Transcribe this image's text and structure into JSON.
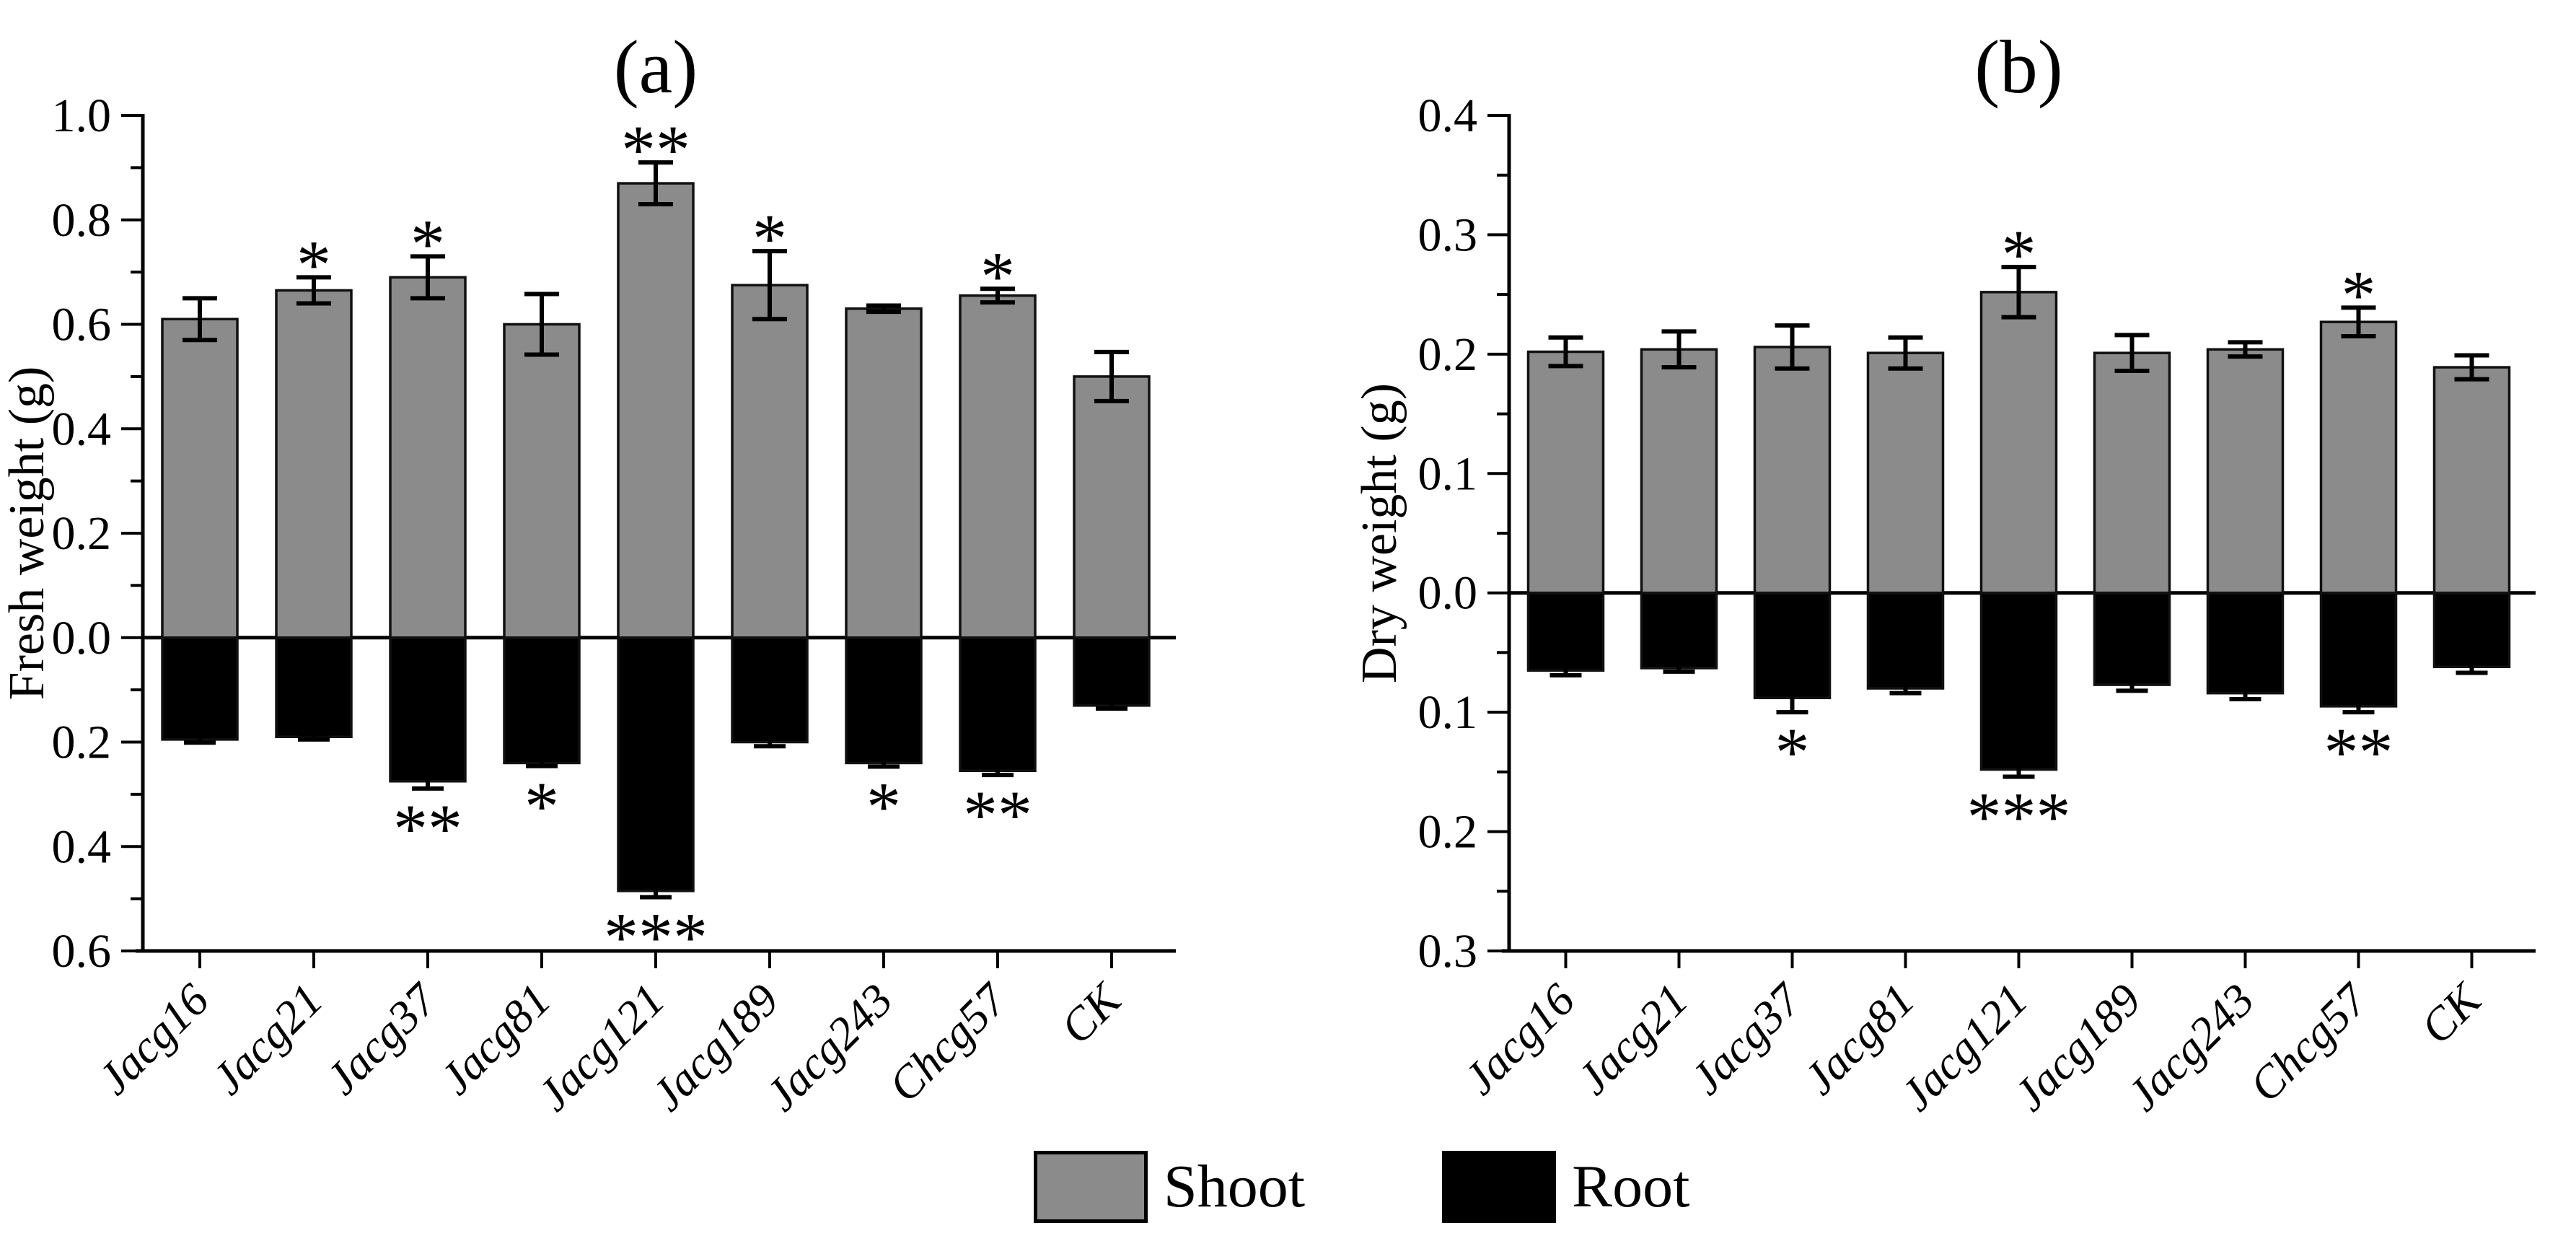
{
  "figure": {
    "background": "#ffffff",
    "bar_fill_shoot": "#8b8b8b",
    "bar_fill_root": "#000000",
    "bar_border": "#111111",
    "legend": {
      "position": "bottom-center",
      "items": [
        {
          "label": "Shoot",
          "swatch": "gray-filled-square",
          "color": "#8b8b8b"
        },
        {
          "label": "Root",
          "swatch": "black-filled-square",
          "color": "#000000"
        }
      ]
    }
  },
  "chart_data": [
    {
      "type": "bar",
      "panel_label": "(a)",
      "title": "(a)",
      "xlabel": "",
      "ylabel": "Fresh weight (g)",
      "grid": false,
      "orientation": "diverging-vertical",
      "categories": [
        "Jacg16",
        "Jacg21",
        "Jacg37",
        "Jacg81",
        "Jacg121",
        "Jacg189",
        "Jacg243",
        "Chcg57",
        "CK"
      ],
      "series": [
        {
          "name": "Shoot",
          "direction": "up",
          "color": "#8b8b8b",
          "values": [
            0.61,
            0.665,
            0.69,
            0.6,
            0.87,
            0.675,
            0.63,
            0.655,
            0.5
          ],
          "errors": [
            0.04,
            0.025,
            0.04,
            0.058,
            0.04,
            0.065,
            0.006,
            0.013,
            0.047
          ],
          "significance": [
            "",
            "*",
            "*",
            "",
            "**",
            "*",
            "",
            "*",
            ""
          ]
        },
        {
          "name": "Root",
          "direction": "down",
          "color": "#000000",
          "values": [
            0.195,
            0.19,
            0.275,
            0.24,
            0.485,
            0.2,
            0.24,
            0.255,
            0.13
          ],
          "errors": [
            0.006,
            0.005,
            0.014,
            0.006,
            0.012,
            0.008,
            0.007,
            0.008,
            0.006
          ],
          "significance": [
            "",
            "",
            "**",
            "*",
            "***",
            "",
            "*",
            "**",
            ""
          ]
        }
      ],
      "y_axis": {
        "max": 1.0,
        "min": -0.6,
        "major_tick_interval": 0.2,
        "minor_tick_interval": 0.1,
        "tick_labels_top_to_bottom": [
          "1.0",
          "0.8",
          "0.6",
          "0.4",
          "0.2",
          "0.0",
          "0.2",
          "0.4",
          "0.6"
        ]
      }
    },
    {
      "type": "bar",
      "panel_label": "(b)",
      "title": "(b)",
      "xlabel": "",
      "ylabel": "Dry weight (g)",
      "grid": false,
      "orientation": "diverging-vertical",
      "categories": [
        "Jacg16",
        "Jacg21",
        "Jacg37",
        "Jacg81",
        "Jacg121",
        "Jacg189",
        "Jacg243",
        "Chcg57",
        "CK"
      ],
      "series": [
        {
          "name": "Shoot",
          "direction": "up",
          "color": "#8b8b8b",
          "values": [
            0.202,
            0.204,
            0.206,
            0.201,
            0.252,
            0.201,
            0.204,
            0.227,
            0.189
          ],
          "errors": [
            0.012,
            0.015,
            0.018,
            0.013,
            0.021,
            0.015,
            0.006,
            0.012,
            0.01
          ],
          "significance": [
            "",
            "",
            "",
            "",
            "*",
            "",
            "",
            "*",
            ""
          ]
        },
        {
          "name": "Root",
          "direction": "down",
          "color": "#000000",
          "values": [
            0.065,
            0.063,
            0.088,
            0.08,
            0.148,
            0.077,
            0.084,
            0.095,
            0.062
          ],
          "errors": [
            0.004,
            0.003,
            0.012,
            0.004,
            0.006,
            0.005,
            0.005,
            0.005,
            0.005
          ],
          "significance": [
            "",
            "",
            "*",
            "",
            "***",
            "",
            "",
            "**",
            ""
          ]
        }
      ],
      "y_axis": {
        "max": 0.4,
        "min": -0.3,
        "major_tick_interval": 0.1,
        "minor_tick_interval": 0.05,
        "tick_labels_top_to_bottom": [
          "0.4",
          "0.3",
          "0.2",
          "0.1",
          "0.0",
          "0.1",
          "0.2",
          "0.3"
        ]
      }
    }
  ]
}
